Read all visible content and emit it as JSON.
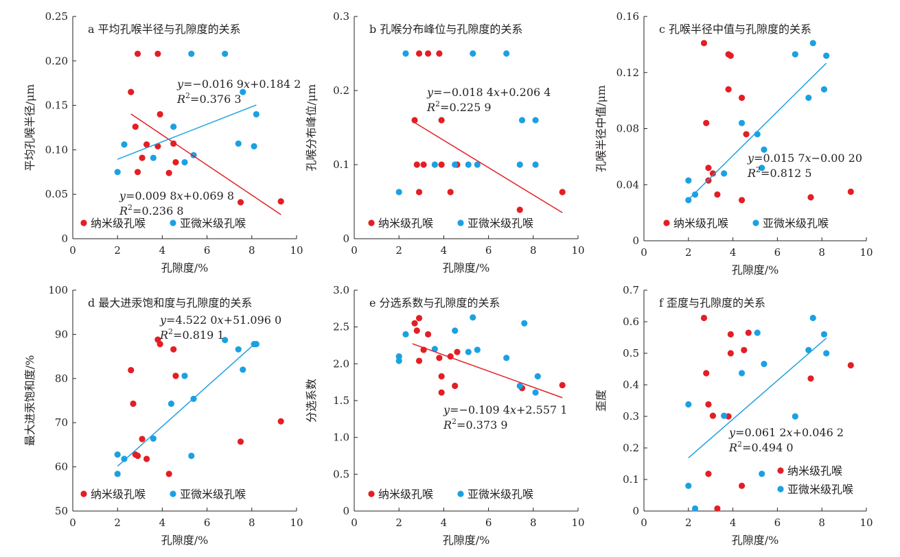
{
  "colors": {
    "nano": "#e31e24",
    "submicron": "#1ba1e2",
    "axis": "#231f20"
  },
  "chart_data": [
    {
      "type": "scatter",
      "title": "a 平均孔喉半径与孔隙度的关系",
      "xlabel": "孔隙度/%",
      "ylabel": "平均孔喉半径/μm",
      "xlim": [
        0,
        10
      ],
      "ylim": [
        0,
        0.25
      ],
      "xticks": [
        "0",
        "2",
        "4",
        "6",
        "8",
        "10"
      ],
      "yticks": [
        "0",
        "0.05",
        "0.10",
        "0.15",
        "0.20",
        "0.25"
      ],
      "legend": {
        "placement": "bottom-left",
        "entries": [
          "纳米级孔喉",
          "亚微米级孔喉"
        ]
      },
      "series": [
        {
          "name": "纳米级孔喉",
          "color": "#e31e24",
          "points": [
            [
              2.9,
              0.208
            ],
            [
              3.8,
              0.208
            ],
            [
              2.6,
              0.165
            ],
            [
              3.9,
              0.14
            ],
            [
              2.8,
              0.126
            ],
            [
              3.3,
              0.106
            ],
            [
              3.8,
              0.104
            ],
            [
              4.5,
              0.107
            ],
            [
              3.1,
              0.091
            ],
            [
              4.6,
              0.086
            ],
            [
              2.9,
              0.075
            ],
            [
              4.3,
              0.074
            ],
            [
              7.5,
              0.041
            ],
            [
              9.3,
              0.042
            ]
          ],
          "trend": {
            "x": [
              2.6,
              9.3
            ],
            "y": [
              0.1403,
              0.0271
            ]
          },
          "equation": [
            "y=−0.016 9x+0.184 2",
            "R2=0.376 3"
          ]
        },
        {
          "name": "亚微米级孔喉",
          "color": "#1ba1e2",
          "points": [
            [
              5.3,
              0.208
            ],
            [
              6.8,
              0.208
            ],
            [
              7.6,
              0.165
            ],
            [
              8.2,
              0.14
            ],
            [
              4.5,
              0.126
            ],
            [
              2.3,
              0.106
            ],
            [
              7.4,
              0.107
            ],
            [
              8.1,
              0.104
            ],
            [
              3.6,
              0.091
            ],
            [
              5.0,
              0.086
            ],
            [
              5.4,
              0.094
            ],
            [
              2.0,
              0.075
            ]
          ],
          "trend": {
            "x": [
              2.0,
              8.2
            ],
            "y": [
              0.0894,
              0.1504
            ]
          },
          "equation": [
            "y=0.009 8x+0.069 8",
            "R2=0.236 8"
          ]
        }
      ]
    },
    {
      "type": "scatter",
      "title": "b 孔喉分布峰位与孔隙度的关系",
      "xlabel": "孔隙度/%",
      "ylabel": "孔喉分布峰位/μm",
      "xlim": [
        0,
        10
      ],
      "ylim": [
        0,
        0.3
      ],
      "xticks": [
        "0",
        "2",
        "4",
        "6",
        "8",
        "10"
      ],
      "yticks": [
        "0",
        "0.1",
        "0.2",
        "0.3"
      ],
      "legend": {
        "placement": "bottom-left",
        "entries": [
          "纳米级孔喉",
          "亚微米级孔喉"
        ]
      },
      "series": [
        {
          "name": "纳米级孔喉",
          "color": "#e31e24",
          "points": [
            [
              2.9,
              0.25
            ],
            [
              3.3,
              0.25
            ],
            [
              3.8,
              0.25
            ],
            [
              2.7,
              0.16
            ],
            [
              3.9,
              0.16
            ],
            [
              2.8,
              0.1
            ],
            [
              3.1,
              0.1
            ],
            [
              3.9,
              0.1
            ],
            [
              4.6,
              0.1
            ],
            [
              2.9,
              0.063
            ],
            [
              4.3,
              0.063
            ],
            [
              7.4,
              0.039
            ],
            [
              9.3,
              0.063
            ]
          ],
          "trend": {
            "x": [
              2.6,
              9.3
            ],
            "y": [
              0.1586,
              0.0352
            ]
          },
          "equation": [
            "y=−0.018 4x+0.206 4",
            "R2=0.225 9"
          ]
        },
        {
          "name": "亚微米级孔喉",
          "color": "#1ba1e2",
          "points": [
            [
              2.3,
              0.25
            ],
            [
              5.3,
              0.25
            ],
            [
              6.8,
              0.25
            ],
            [
              7.5,
              0.16
            ],
            [
              8.1,
              0.16
            ],
            [
              3.6,
              0.1
            ],
            [
              4.5,
              0.1
            ],
            [
              5.1,
              0.1
            ],
            [
              5.5,
              0.1
            ],
            [
              7.4,
              0.1
            ],
            [
              8.1,
              0.1
            ],
            [
              2.0,
              0.063
            ]
          ]
        }
      ]
    },
    {
      "type": "scatter",
      "title": "c 孔喉半径中值与孔隙度的关系",
      "xlabel": "孔隙度/%",
      "ylabel": "孔喉半径中值/μm",
      "xlim": [
        0,
        10
      ],
      "ylim": [
        0,
        0.16
      ],
      "xticks": [
        "0",
        "2",
        "4",
        "6",
        "8",
        "10"
      ],
      "yticks": [
        "0",
        "0.04",
        "0.08",
        "0.12",
        "0.16"
      ],
      "legend": {
        "placement": "bottom-left",
        "entries": [
          "纳米级孔喉",
          "亚微米级孔喉"
        ]
      },
      "series": [
        {
          "name": "纳米级孔喉",
          "color": "#e31e24",
          "points": [
            [
              2.7,
              0.141
            ],
            [
              3.8,
              0.133
            ],
            [
              3.9,
              0.132
            ],
            [
              3.8,
              0.108
            ],
            [
              4.4,
              0.102
            ],
            [
              2.8,
              0.084
            ],
            [
              4.6,
              0.076
            ],
            [
              2.9,
              0.052
            ],
            [
              3.1,
              0.048
            ],
            [
              2.9,
              0.043
            ],
            [
              3.3,
              0.033
            ],
            [
              4.4,
              0.029
            ],
            [
              7.5,
              0.031
            ],
            [
              9.3,
              0.035
            ]
          ]
        },
        {
          "name": "亚微米级孔喉",
          "color": "#1ba1e2",
          "points": [
            [
              7.6,
              0.141
            ],
            [
              6.8,
              0.133
            ],
            [
              8.2,
              0.132
            ],
            [
              8.1,
              0.108
            ],
            [
              7.4,
              0.102
            ],
            [
              4.4,
              0.084
            ],
            [
              5.1,
              0.076
            ],
            [
              5.4,
              0.065
            ],
            [
              5.3,
              0.052
            ],
            [
              3.6,
              0.048
            ],
            [
              2.0,
              0.043
            ],
            [
              2.3,
              0.033
            ],
            [
              2.0,
              0.029
            ]
          ],
          "trend": {
            "x": [
              2.0,
              8.2
            ],
            "y": [
              0.0294,
              0.1267
            ]
          },
          "equation": [
            "y=0.015 7x−0.00 20",
            "R2=0.812 5"
          ]
        }
      ]
    },
    {
      "type": "scatter",
      "title": "d 最大进汞饱和度与孔隙度的关系",
      "xlabel": "孔隙度/%",
      "ylabel": "最大进汞饱和度/%",
      "xlim": [
        0,
        10
      ],
      "ylim": [
        50,
        100
      ],
      "xticks": [
        "0",
        "2",
        "4",
        "6",
        "8",
        "10"
      ],
      "yticks": [
        "50",
        "60",
        "70",
        "80",
        "90",
        "100"
      ],
      "legend": {
        "placement": "bottom-left",
        "entries": [
          "纳米级孔喉",
          "亚微米级孔喉"
        ]
      },
      "series": [
        {
          "name": "纳米级孔喉",
          "color": "#e31e24",
          "points": [
            [
              3.8,
              88.8
            ],
            [
              3.9,
              87.8
            ],
            [
              4.5,
              86.6
            ],
            [
              2.6,
              81.9
            ],
            [
              4.6,
              80.6
            ],
            [
              2.7,
              74.3
            ],
            [
              3.1,
              66.3
            ],
            [
              2.8,
              62.8
            ],
            [
              2.9,
              62.5
            ],
            [
              3.3,
              61.8
            ],
            [
              4.3,
              58.4
            ],
            [
              7.5,
              65.7
            ],
            [
              9.3,
              70.3
            ]
          ]
        },
        {
          "name": "亚微米级孔喉",
          "color": "#1ba1e2",
          "points": [
            [
              6.8,
              88.7
            ],
            [
              8.1,
              87.8
            ],
            [
              8.2,
              87.8
            ],
            [
              7.4,
              86.6
            ],
            [
              7.6,
              82.0
            ],
            [
              5.0,
              80.6
            ],
            [
              5.4,
              75.4
            ],
            [
              4.4,
              74.3
            ],
            [
              3.6,
              66.4
            ],
            [
              5.3,
              62.5
            ],
            [
              2.0,
              62.8
            ],
            [
              2.3,
              61.8
            ],
            [
              2.0,
              58.4
            ]
          ],
          "trend": {
            "x": [
              2.0,
              8.2
            ],
            "y": [
              60.14,
              88.18
            ]
          },
          "equation": [
            "y=4.522 0x+51.096 0",
            "R2=0.819 1"
          ]
        }
      ]
    },
    {
      "type": "scatter",
      "title": "e 分选系数与孔隙度的关系",
      "xlabel": "孔隙度/%",
      "ylabel": "分选系数",
      "xlim": [
        0,
        10
      ],
      "ylim": [
        0,
        3.0
      ],
      "xticks": [
        "0",
        "2",
        "4",
        "6",
        "8",
        "10"
      ],
      "yticks": [
        "0",
        "0.5",
        "1.0",
        "1.5",
        "2.0",
        "2.5",
        "3.0"
      ],
      "legend": {
        "placement": "bottom-left",
        "entries": [
          "纳米级孔喉",
          "亚微米级孔喉"
        ]
      },
      "series": [
        {
          "name": "纳米级孔喉",
          "color": "#e31e24",
          "points": [
            [
              2.9,
              2.62
            ],
            [
              2.7,
              2.55
            ],
            [
              2.8,
              2.45
            ],
            [
              3.3,
              2.4
            ],
            [
              3.1,
              2.19
            ],
            [
              4.6,
              2.16
            ],
            [
              4.3,
              2.1
            ],
            [
              3.8,
              2.08
            ],
            [
              2.9,
              2.04
            ],
            [
              3.9,
              1.83
            ],
            [
              4.5,
              1.7
            ],
            [
              3.9,
              1.61
            ],
            [
              7.5,
              1.67
            ],
            [
              9.3,
              1.71
            ]
          ],
          "trend": {
            "x": [
              2.6,
              9.3
            ],
            "y": [
              2.2727,
              1.5397
            ]
          },
          "equation": [
            "y=−0.109 4x+2.557 1",
            "R2=0.373 9"
          ]
        },
        {
          "name": "亚微米级孔喉",
          "color": "#1ba1e2",
          "points": [
            [
              5.3,
              2.63
            ],
            [
              7.6,
              2.55
            ],
            [
              4.5,
              2.45
            ],
            [
              2.3,
              2.4
            ],
            [
              3.6,
              2.2
            ],
            [
              5.5,
              2.19
            ],
            [
              5.1,
              2.16
            ],
            [
              2.0,
              2.1
            ],
            [
              6.8,
              2.08
            ],
            [
              2.0,
              2.04
            ],
            [
              8.2,
              1.83
            ],
            [
              7.4,
              1.7
            ],
            [
              8.1,
              1.61
            ]
          ]
        }
      ]
    },
    {
      "type": "scatter",
      "title": "f 歪度与孔隙度的关系",
      "xlabel": "孔隙度/%",
      "ylabel": "歪度",
      "xlim": [
        0,
        10
      ],
      "ylim": [
        0,
        0.7
      ],
      "xticks": [
        "0",
        "2",
        "4",
        "6",
        "8",
        "10"
      ],
      "yticks": [
        "0",
        "0.1",
        "0.2",
        "0.3",
        "0.4",
        "0.5",
        "0.6",
        "0.7"
      ],
      "legend": {
        "placement": "bottom-right",
        "entries": [
          "纳米级孔喉",
          "亚微米级孔喉"
        ]
      },
      "series": [
        {
          "name": "纳米级孔喉",
          "color": "#e31e24",
          "points": [
            [
              2.7,
              0.612
            ],
            [
              4.7,
              0.565
            ],
            [
              3.9,
              0.56
            ],
            [
              4.5,
              0.51
            ],
            [
              3.9,
              0.5
            ],
            [
              2.8,
              0.437
            ],
            [
              7.5,
              0.42
            ],
            [
              9.3,
              0.462
            ],
            [
              2.9,
              0.338
            ],
            [
              3.1,
              0.302
            ],
            [
              3.8,
              0.3
            ],
            [
              2.9,
              0.118
            ],
            [
              4.4,
              0.08
            ],
            [
              3.3,
              0.008
            ]
          ]
        },
        {
          "name": "亚微米级孔喉",
          "color": "#1ba1e2",
          "points": [
            [
              7.6,
              0.612
            ],
            [
              5.1,
              0.565
            ],
            [
              8.1,
              0.56
            ],
            [
              7.4,
              0.51
            ],
            [
              8.2,
              0.5
            ],
            [
              5.4,
              0.466
            ],
            [
              4.4,
              0.437
            ],
            [
              2.0,
              0.338
            ],
            [
              3.6,
              0.302
            ],
            [
              6.8,
              0.3
            ],
            [
              5.3,
              0.118
            ],
            [
              2.0,
              0.08
            ],
            [
              2.3,
              0.008
            ]
          ],
          "trend": {
            "x": [
              2.0,
              8.2
            ],
            "y": [
              0.1686,
              0.548
            ]
          },
          "equation": [
            "y=0.061 2x+0.046 2",
            "R2=0.494 0"
          ]
        }
      ]
    }
  ]
}
